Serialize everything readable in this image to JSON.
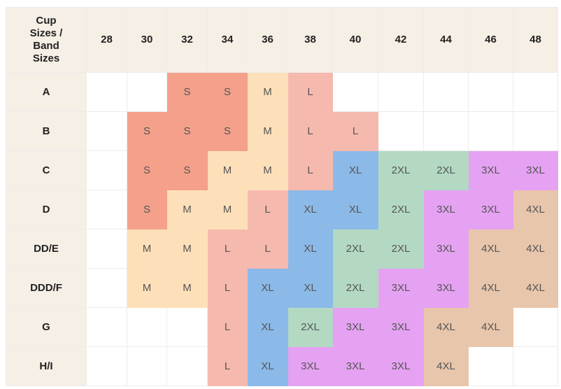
{
  "table": {
    "header": [
      "Cup Sizes / Band Sizes",
      "28",
      "30",
      "32",
      "34",
      "36",
      "38",
      "40",
      "42",
      "44",
      "46",
      "48"
    ],
    "rows": [
      [
        "A",
        null,
        null,
        "S",
        "S",
        "M",
        "L",
        null,
        null,
        null,
        null,
        null
      ],
      [
        "B",
        null,
        "S",
        "S",
        "S",
        "M",
        "L",
        "L",
        null,
        null,
        null,
        null
      ],
      [
        "C",
        null,
        "S",
        "S",
        "M",
        "M",
        "L",
        "XL",
        "2XL",
        "2XL",
        "3XL",
        "3XL"
      ],
      [
        "D",
        null,
        "S",
        "M",
        "M",
        "L",
        "XL",
        "XL",
        "2XL",
        "3XL",
        "3XL",
        "4XL"
      ],
      [
        "DD/E",
        null,
        "M",
        "M",
        "L",
        "L",
        "XL",
        "2XL",
        "2XL",
        "3XL",
        "4XL",
        "4XL"
      ],
      [
        "DDD/F",
        null,
        "M",
        "M",
        "L",
        "XL",
        "XL",
        "2XL",
        "3XL",
        "3XL",
        "4XL",
        "4XL"
      ],
      [
        "G",
        null,
        null,
        null,
        "L",
        "XL",
        "2XL",
        "3XL",
        "3XL",
        "4XL",
        "4XL",
        null
      ],
      [
        "H/I",
        null,
        null,
        null,
        "L",
        "XL",
        "3XL",
        "3XL",
        "3XL",
        "4XL",
        null,
        null
      ]
    ],
    "size_colors": {
      "S": "#f4a08b",
      "M": "#fde0b9",
      "L": "#f5b9ae",
      "XL": "#8bb9e8",
      "2XL": "#b3d9c3",
      "3XL": "#e5a2f2",
      "4XL": "#e8c6ac"
    }
  }
}
